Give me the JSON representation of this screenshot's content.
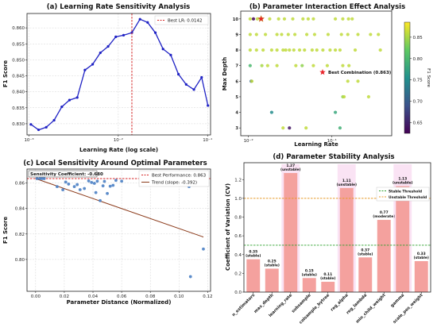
{
  "chart_data": [
    {
      "type": "line",
      "title": "(a) Learning Rate Sensitivity Analysis",
      "xlabel": "Learning Rate (log scale)",
      "ylabel": "F1 Score",
      "xscale": "log",
      "xlim": [
        0.00095,
        0.108
      ],
      "ylim": [
        0.8265,
        0.8645
      ],
      "yticks": [
        0.83,
        0.835,
        0.84,
        0.845,
        0.85,
        0.855,
        0.86
      ],
      "ytick_labels": [
        "0.830",
        "0.835",
        "0.840",
        "0.845",
        "0.850",
        "0.855",
        "0.860"
      ],
      "xticks": [
        0.001,
        0.01,
        0.1
      ],
      "xtick_labels": [
        "10⁻³",
        "10⁻²",
        "10⁻¹"
      ],
      "grid": true,
      "series": [
        {
          "color": "#1f22c4",
          "x": [
            0.00105,
            0.00128,
            0.00156,
            0.00191,
            0.00233,
            0.00284,
            0.00347,
            0.00423,
            0.00516,
            0.0063,
            0.00769,
            0.00938,
            0.01145,
            0.0142,
            0.0175,
            0.0213,
            0.026,
            0.0317,
            0.0387,
            0.0472,
            0.0576,
            0.0703,
            0.0858,
            0.101
          ],
          "y": [
            0.8298,
            0.8281,
            0.8289,
            0.8311,
            0.8353,
            0.8374,
            0.8382,
            0.8468,
            0.8486,
            0.8522,
            0.8542,
            0.8572,
            0.8577,
            0.8585,
            0.8627,
            0.8617,
            0.8585,
            0.8534,
            0.8515,
            0.8455,
            0.8423,
            0.8407,
            0.8445,
            0.8357
          ]
        }
      ],
      "reference_line": {
        "axis": "x",
        "value": 0.0142,
        "label": "Best LR: 0.0142",
        "color": "#d62728"
      },
      "legend": "top-right"
    },
    {
      "type": "scatter",
      "title": "(b) Parameter Interaction Effect Analysis",
      "xlabel": "Learning Rate",
      "ylabel": "Max Depth",
      "xscale": "log",
      "xlim": [
        0.0081,
        0.52
      ],
      "ylim": [
        2.5,
        10.5
      ],
      "yticks": [
        3,
        4,
        5,
        6,
        7,
        8,
        9,
        10
      ],
      "xticks": [
        0.01,
        0.1
      ],
      "xtick_labels": [
        "10⁻²",
        "10⁻¹"
      ],
      "colorbar": {
        "label": "F1 Score",
        "range": [
          0.625,
          0.885
        ],
        "ticks": [
          0.65,
          0.7,
          0.75,
          0.8,
          0.85
        ],
        "tick_labels": [
          "0.65",
          "0.70",
          "0.75",
          "0.80",
          "0.85"
        ],
        "colormap": "viridis"
      },
      "points": [
        [
          0.0105,
          10,
          0.86
        ],
        [
          0.0115,
          10,
          0.6
        ],
        [
          0.0128,
          10,
          0.86
        ],
        [
          0.0142,
          10,
          0.86
        ],
        [
          0.018,
          10,
          0.86
        ],
        [
          0.023,
          10,
          0.86
        ],
        [
          0.027,
          10,
          0.86
        ],
        [
          0.034,
          10,
          0.86
        ],
        [
          0.045,
          10,
          0.86
        ],
        [
          0.052,
          10,
          0.86
        ],
        [
          0.06,
          10,
          0.86
        ],
        [
          0.11,
          10,
          0.86
        ],
        [
          0.135,
          10,
          0.86
        ],
        [
          0.158,
          10,
          0.86
        ],
        [
          0.175,
          10,
          0.86
        ],
        [
          0.0105,
          9,
          0.86
        ],
        [
          0.0125,
          9,
          0.86
        ],
        [
          0.016,
          9,
          0.86
        ],
        [
          0.022,
          9,
          0.86
        ],
        [
          0.025,
          9,
          0.86
        ],
        [
          0.03,
          9,
          0.86
        ],
        [
          0.036,
          9,
          0.86
        ],
        [
          0.05,
          9,
          0.86
        ],
        [
          0.062,
          9,
          0.86
        ],
        [
          0.09,
          9,
          0.86
        ],
        [
          0.13,
          9,
          0.86
        ],
        [
          0.155,
          9,
          0.86
        ],
        [
          0.205,
          9,
          0.86
        ],
        [
          0.29,
          9,
          0.86
        ],
        [
          0.36,
          9,
          0.86
        ],
        [
          0.0105,
          8,
          0.86
        ],
        [
          0.0125,
          8,
          0.86
        ],
        [
          0.015,
          8,
          0.86
        ],
        [
          0.019,
          8,
          0.86
        ],
        [
          0.022,
          8,
          0.86
        ],
        [
          0.026,
          8,
          0.86
        ],
        [
          0.028,
          8,
          0.86
        ],
        [
          0.031,
          8,
          0.86
        ],
        [
          0.035,
          8,
          0.86
        ],
        [
          0.041,
          8,
          0.86
        ],
        [
          0.047,
          8,
          0.86
        ],
        [
          0.058,
          8,
          0.86
        ],
        [
          0.066,
          8,
          0.86
        ],
        [
          0.078,
          8,
          0.86
        ],
        [
          0.095,
          8,
          0.86
        ],
        [
          0.11,
          8,
          0.86
        ],
        [
          0.125,
          8,
          0.86
        ],
        [
          0.19,
          8,
          0.86
        ],
        [
          0.38,
          8,
          0.86
        ],
        [
          0.0105,
          7,
          0.8
        ],
        [
          0.0145,
          7,
          0.85
        ],
        [
          0.017,
          7,
          0.86
        ],
        [
          0.022,
          7,
          0.86
        ],
        [
          0.037,
          7,
          0.86
        ],
        [
          0.044,
          7,
          0.84
        ],
        [
          0.06,
          7,
          0.86
        ],
        [
          0.088,
          7,
          0.86
        ],
        [
          0.135,
          7,
          0.86
        ],
        [
          0.16,
          7,
          0.86
        ],
        [
          0.0108,
          6,
          0.71
        ],
        [
          0.011,
          6,
          0.86
        ],
        [
          0.155,
          6,
          0.86
        ],
        [
          0.205,
          6,
          0.86
        ],
        [
          0.135,
          5,
          0.84
        ],
        [
          0.14,
          5,
          0.86
        ],
        [
          0.275,
          5,
          0.86
        ],
        [
          0.019,
          4,
          0.75
        ],
        [
          0.11,
          4,
          0.78
        ],
        [
          0.026,
          3,
          0.86
        ],
        [
          0.031,
          3,
          0.64
        ],
        [
          0.049,
          3,
          0.86
        ],
        [
          0.125,
          3,
          0.79
        ]
      ],
      "point_order": [
        "learning_rate",
        "max_depth",
        "f1_score"
      ],
      "best": {
        "x": 0.0142,
        "y": 10,
        "label": "Best Combination (0.863)",
        "color": "#e8232a"
      }
    },
    {
      "type": "scatter",
      "title": "(c) Local Sensitivity Around Optimal Parameters",
      "xlabel": "Parameter Distance (Normalized)",
      "ylabel": "F1 Score",
      "xlim": [
        -0.006,
        0.122
      ],
      "ylim": [
        0.775,
        0.871
      ],
      "xticks": [
        0.0,
        0.02,
        0.04,
        0.06,
        0.08,
        0.1,
        0.12
      ],
      "xtick_labels": [
        "0.00",
        "0.02",
        "0.04",
        "0.06",
        "0.08",
        "0.10",
        "0.12"
      ],
      "yticks": [
        0.8,
        0.82,
        0.84,
        0.86
      ],
      "ytick_labels": [
        "0.80",
        "0.82",
        "0.84",
        "0.86"
      ],
      "grid": true,
      "points": [
        [
          0.001,
          0.8635
        ],
        [
          0.003,
          0.8635
        ],
        [
          0.0045,
          0.8635
        ],
        [
          0.006,
          0.8635
        ],
        [
          0.015,
          0.8572
        ],
        [
          0.019,
          0.8547
        ],
        [
          0.021,
          0.8608
        ],
        [
          0.023,
          0.8592
        ],
        [
          0.027,
          0.8572
        ],
        [
          0.029,
          0.8588
        ],
        [
          0.031,
          0.8548
        ],
        [
          0.034,
          0.8557
        ],
        [
          0.037,
          0.8617
        ],
        [
          0.039,
          0.8605
        ],
        [
          0.041,
          0.8598
        ],
        [
          0.042,
          0.8525
        ],
        [
          0.043,
          0.8615
        ],
        [
          0.045,
          0.8462
        ],
        [
          0.047,
          0.8578
        ],
        [
          0.048,
          0.8613
        ],
        [
          0.05,
          0.8518
        ],
        [
          0.052,
          0.8575
        ],
        [
          0.054,
          0.8582
        ],
        [
          0.056,
          0.8621
        ],
        [
          0.06,
          0.8615
        ],
        [
          0.107,
          0.8572
        ],
        [
          0.108,
          0.7865
        ],
        [
          0.117,
          0.8082
        ]
      ],
      "annotation": "Sensitivity Coefficient: -0.680",
      "lines": [
        {
          "label": "Best Performance: 0.863",
          "type": "hline",
          "y": 0.8635,
          "color": "#d62728"
        },
        {
          "label": "Trend (slope: -0.392)",
          "type": "line",
          "x": [
            0.0,
            0.117
          ],
          "y": 0.8635,
          "slope": -0.392,
          "color": "#8b3a1a"
        }
      ],
      "legend": "top-right"
    },
    {
      "type": "bar",
      "title": "(d) Parameter Stability Analysis",
      "ylabel": "Coefficient of Variation (CV)",
      "categories": [
        "n_estimators",
        "max_depth",
        "learning_rate",
        "subsample",
        "colsample_bytree",
        "reg_alpha",
        "reg_lambda",
        "min_child_weight",
        "gamma",
        "scale_pos_weight"
      ],
      "values": [
        0.35,
        0.25,
        1.27,
        0.15,
        0.11,
        1.11,
        0.37,
        0.77,
        1.13,
        0.33
      ],
      "value_labels": [
        "0.35",
        "0.25",
        "1.27",
        "0.15",
        "0.11",
        "1.11",
        "0.37",
        "0.77",
        "1.13",
        "0.33"
      ],
      "status_labels": [
        "(stable)",
        "(stable)",
        "(unstable)",
        "(stable)",
        "(stable)",
        "(unstable)",
        "(stable)",
        "(moderate)",
        "(unstable)",
        "(stable)"
      ],
      "ylim": [
        0,
        1.38
      ],
      "yticks": [
        0.0,
        0.2,
        0.4,
        0.6,
        0.8,
        1.0,
        1.2
      ],
      "ytick_labels": [
        "0.0",
        "0.2",
        "0.4",
        "0.6",
        "0.8",
        "1.0",
        "1.2"
      ],
      "bar_color": "#f4a19e",
      "thresholds": [
        {
          "label": "Stable Threshold",
          "value": 0.5,
          "color": "#2ca02c"
        },
        {
          "label": "Unstable Threshold",
          "value": 1.0,
          "color": "#e89a2a"
        }
      ],
      "legend": "top-right"
    }
  ]
}
